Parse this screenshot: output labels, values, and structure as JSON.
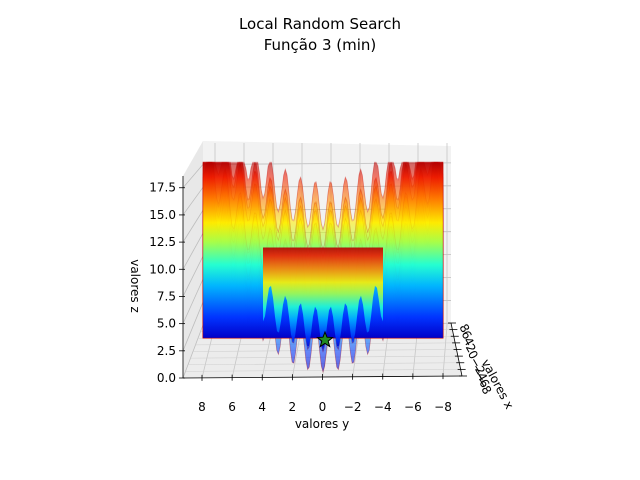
{
  "chart_data": {
    "type": "surface3d",
    "title": "Local Random Search",
    "subtitle": "Função 3 (min)",
    "xlabel": "valores x",
    "ylabel": "valores y",
    "zlabel": "valores z",
    "xlim": [
      -8,
      8
    ],
    "ylim": [
      -8,
      8
    ],
    "zlim": [
      0,
      19.5
    ],
    "x_ticks": [
      "8",
      "6",
      "4",
      "2",
      "0",
      "−2",
      "−4",
      "−6",
      "−8"
    ],
    "y_ticks": [
      "8",
      "6",
      "4",
      "2",
      "0",
      "−2",
      "−4",
      "−6",
      "−8"
    ],
    "z_ticks": [
      "0.0",
      "2.5",
      "5.0",
      "7.5",
      "10.0",
      "12.5",
      "15.0",
      "17.5"
    ],
    "colormap": "jet",
    "grid": true,
    "minimum_marker": {
      "x": 0,
      "y": 0,
      "z": 0,
      "shape": "star",
      "color": "#228b22"
    }
  }
}
